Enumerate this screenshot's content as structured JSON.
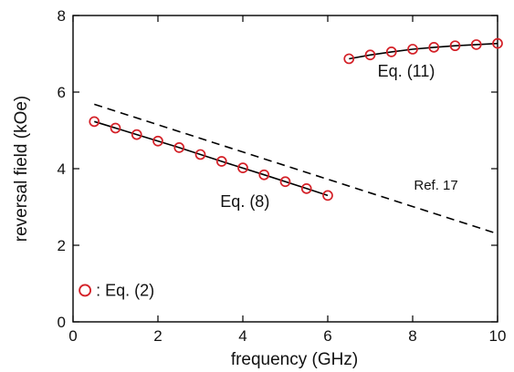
{
  "chart_data": {
    "type": "scatter",
    "xlabel": "frequency (GHz)",
    "ylabel": "reversal field (kOe)",
    "xlim": [
      0,
      10
    ],
    "ylim": [
      0,
      8
    ],
    "xticks": [
      0,
      2,
      4,
      6,
      8,
      10
    ],
    "yticks": [
      0,
      2,
      4,
      6,
      8
    ],
    "xtick_labels": [
      "0",
      "2",
      "4",
      "6",
      "8",
      "10"
    ],
    "ytick_labels": [
      "0",
      "2",
      "4",
      "6",
      "8"
    ],
    "grid": false,
    "series": [
      {
        "name": "Eq. (2)",
        "style": "open-circle",
        "color": "#d42027",
        "points": [
          {
            "x": 0.5,
            "y": 5.23
          },
          {
            "x": 1.0,
            "y": 5.06
          },
          {
            "x": 1.5,
            "y": 4.89
          },
          {
            "x": 2.0,
            "y": 4.72
          },
          {
            "x": 2.5,
            "y": 4.55
          },
          {
            "x": 3.0,
            "y": 4.37
          },
          {
            "x": 3.5,
            "y": 4.19
          },
          {
            "x": 4.0,
            "y": 4.02
          },
          {
            "x": 4.5,
            "y": 3.84
          },
          {
            "x": 5.0,
            "y": 3.66
          },
          {
            "x": 5.5,
            "y": 3.48
          },
          {
            "x": 6.0,
            "y": 3.3
          },
          {
            "x": 6.5,
            "y": 6.87
          },
          {
            "x": 7.0,
            "y": 6.97
          },
          {
            "x": 7.5,
            "y": 7.05
          },
          {
            "x": 8.0,
            "y": 7.12
          },
          {
            "x": 8.5,
            "y": 7.17
          },
          {
            "x": 9.0,
            "y": 7.21
          },
          {
            "x": 9.5,
            "y": 7.24
          },
          {
            "x": 10.0,
            "y": 7.27
          }
        ]
      },
      {
        "name": "Eq. (8)",
        "style": "solid-line",
        "color": "#000000",
        "points": [
          {
            "x": 0.5,
            "y": 5.23
          },
          {
            "x": 1.5,
            "y": 4.89
          },
          {
            "x": 2.5,
            "y": 4.55
          },
          {
            "x": 3.5,
            "y": 4.19
          },
          {
            "x": 4.5,
            "y": 3.84
          },
          {
            "x": 5.5,
            "y": 3.48
          },
          {
            "x": 6.0,
            "y": 3.3
          }
        ]
      },
      {
        "name": "Eq. (11)",
        "style": "solid-line",
        "color": "#000000",
        "points": [
          {
            "x": 6.5,
            "y": 6.87
          },
          {
            "x": 7.0,
            "y": 6.97
          },
          {
            "x": 7.5,
            "y": 7.05
          },
          {
            "x": 8.0,
            "y": 7.12
          },
          {
            "x": 8.5,
            "y": 7.17
          },
          {
            "x": 9.0,
            "y": 7.21
          },
          {
            "x": 9.5,
            "y": 7.24
          },
          {
            "x": 10.0,
            "y": 7.27
          }
        ]
      },
      {
        "name": "Ref. 17",
        "style": "dashed-line",
        "color": "#000000",
        "points": [
          {
            "x": 0.5,
            "y": 5.68
          },
          {
            "x": 10.0,
            "y": 2.3
          }
        ]
      }
    ],
    "annotations": [
      {
        "text": "Eq. (11)",
        "x": 7.85,
        "y": 6.4
      },
      {
        "text": "Eq. (8)",
        "x": 4.05,
        "y": 3.0
      },
      {
        "text": "Ref. 17",
        "x": 8.55,
        "y": 3.45
      },
      {
        "text": ": Eq. (2)",
        "x": 1.4,
        "y": 0.68
      }
    ],
    "legend": {
      "label": ": Eq. (2)",
      "marker": "open-circle",
      "placement": "bottom-left"
    }
  }
}
